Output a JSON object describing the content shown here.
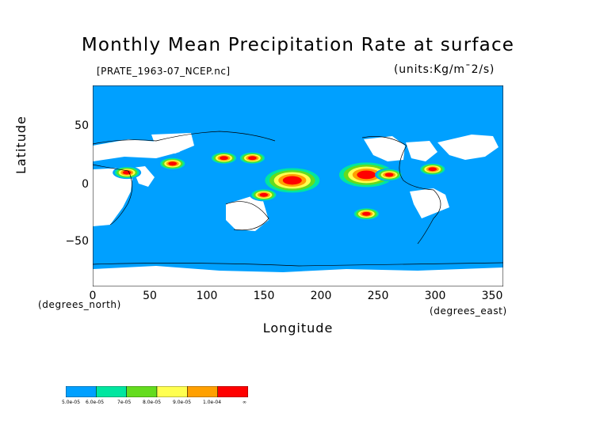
{
  "title": "Monthly Mean Precipitation Rate at surface",
  "file_label": "[PRATE_1963-07_NCEP.nc]",
  "units": "(units:Kg/m¯2/s)",
  "axes": {
    "y_title": "Latitude",
    "x_title": "Longitude",
    "y_ticks": [
      "50",
      "0",
      "−50"
    ],
    "x_ticks": [
      "0",
      "50",
      "100",
      "150",
      "200",
      "250",
      "300",
      "350"
    ],
    "y_unit_note": "(degrees_north)",
    "x_unit_note": "(degrees_east)"
  },
  "colors": {
    "background": "#00a0ff",
    "land_missing": "#ffffff",
    "bins": [
      "#00a0ff",
      "#00e6a0",
      "#64dc1e",
      "#ffff50",
      "#ffa000",
      "#ff0000"
    ]
  },
  "colorbar": {
    "labels": [
      "5.0e-05",
      "6.0e-05",
      "7e-05",
      "8.0e-05",
      "9.0e-05",
      "1.0e-04",
      "∞"
    ]
  },
  "chart_data": {
    "type": "heatmap",
    "title": "Monthly Mean Precipitation Rate at surface",
    "xlabel": "Longitude",
    "ylabel": "Latitude",
    "xlim": [
      0,
      360
    ],
    "ylim": [
      -90,
      90
    ],
    "x_ticks": [
      0,
      50,
      100,
      150,
      200,
      250,
      300,
      350
    ],
    "y_ticks": [
      -50,
      0,
      50
    ],
    "units": "Kg/m^2/s",
    "color_levels": [
      5e-05,
      6e-05,
      7e-05,
      8e-05,
      9e-05,
      0.0001
    ],
    "regions": [
      {
        "lon": 240,
        "lat": 10,
        "level": 6
      },
      {
        "lon": 175,
        "lat": 5,
        "level": 6
      },
      {
        "lon": 260,
        "lat": 10,
        "level": 6
      },
      {
        "lon": 298,
        "lat": 15,
        "level": 6
      },
      {
        "lon": 70,
        "lat": 20,
        "level": 6
      },
      {
        "lon": 115,
        "lat": 25,
        "level": 6
      },
      {
        "lon": 140,
        "lat": 25,
        "level": 6
      },
      {
        "lon": 30,
        "lat": 12,
        "level": 6
      },
      {
        "lon": 240,
        "lat": -25,
        "level": 6
      },
      {
        "lon": 150,
        "lat": -8,
        "level": 6
      }
    ]
  }
}
